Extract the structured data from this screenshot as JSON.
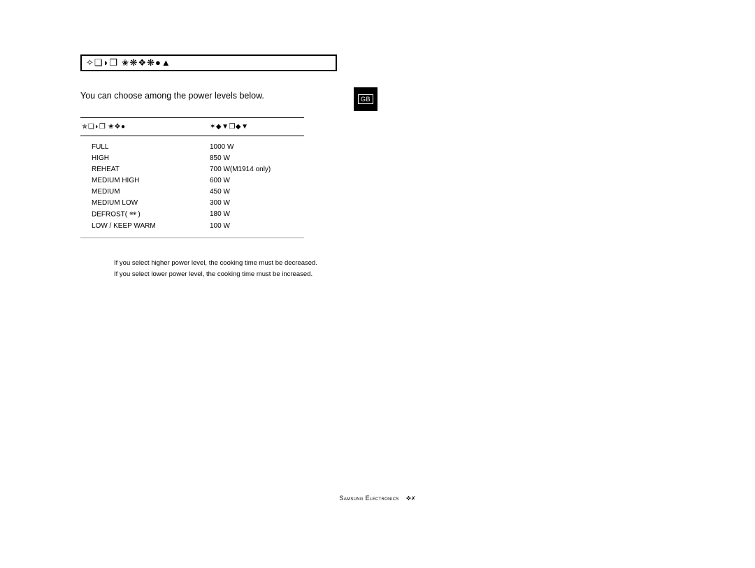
{
  "title_symbols": "✧❏◗❒ ✬❋❖❋●▲",
  "intro": "You can choose among the power levels below.",
  "header": {
    "col1_symbols": "✯❏◗❒ ✬❖●",
    "col2_symbols": "✶◆▼❒◆▼"
  },
  "rows": [
    {
      "level": "FULL",
      "output": "1000 W"
    },
    {
      "level": "HIGH",
      "output": "850 W"
    },
    {
      "level": "REHEAT",
      "output": "700 W(M1914 only)"
    },
    {
      "level": "MEDIUM HIGH",
      "output": "600 W"
    },
    {
      "level": "MEDIUM",
      "output": "450 W"
    },
    {
      "level": "MEDIUM LOW",
      "output": "300 W"
    },
    {
      "level": "DEFROST(",
      "level_suffix": ")",
      "output": "180 W",
      "has_icon": true
    },
    {
      "level": "LOW / KEEP WARM",
      "output": "100 W"
    }
  ],
  "defrost_icon": "❄❄",
  "notes": [
    "If you select higher power level, the cooking time must be decreased.",
    "If you select lower power level, the cooking time must be increased."
  ],
  "badge": "GB",
  "footer": {
    "brand": "Samsung Electronics",
    "page_sym": "✜✗"
  },
  "colors": {
    "bg": "#ffffff",
    "fg": "#000000",
    "rule_light": "#999999"
  },
  "fonts": {
    "body_size": 12.5,
    "table_size": 10,
    "note_size": 9.5
  }
}
